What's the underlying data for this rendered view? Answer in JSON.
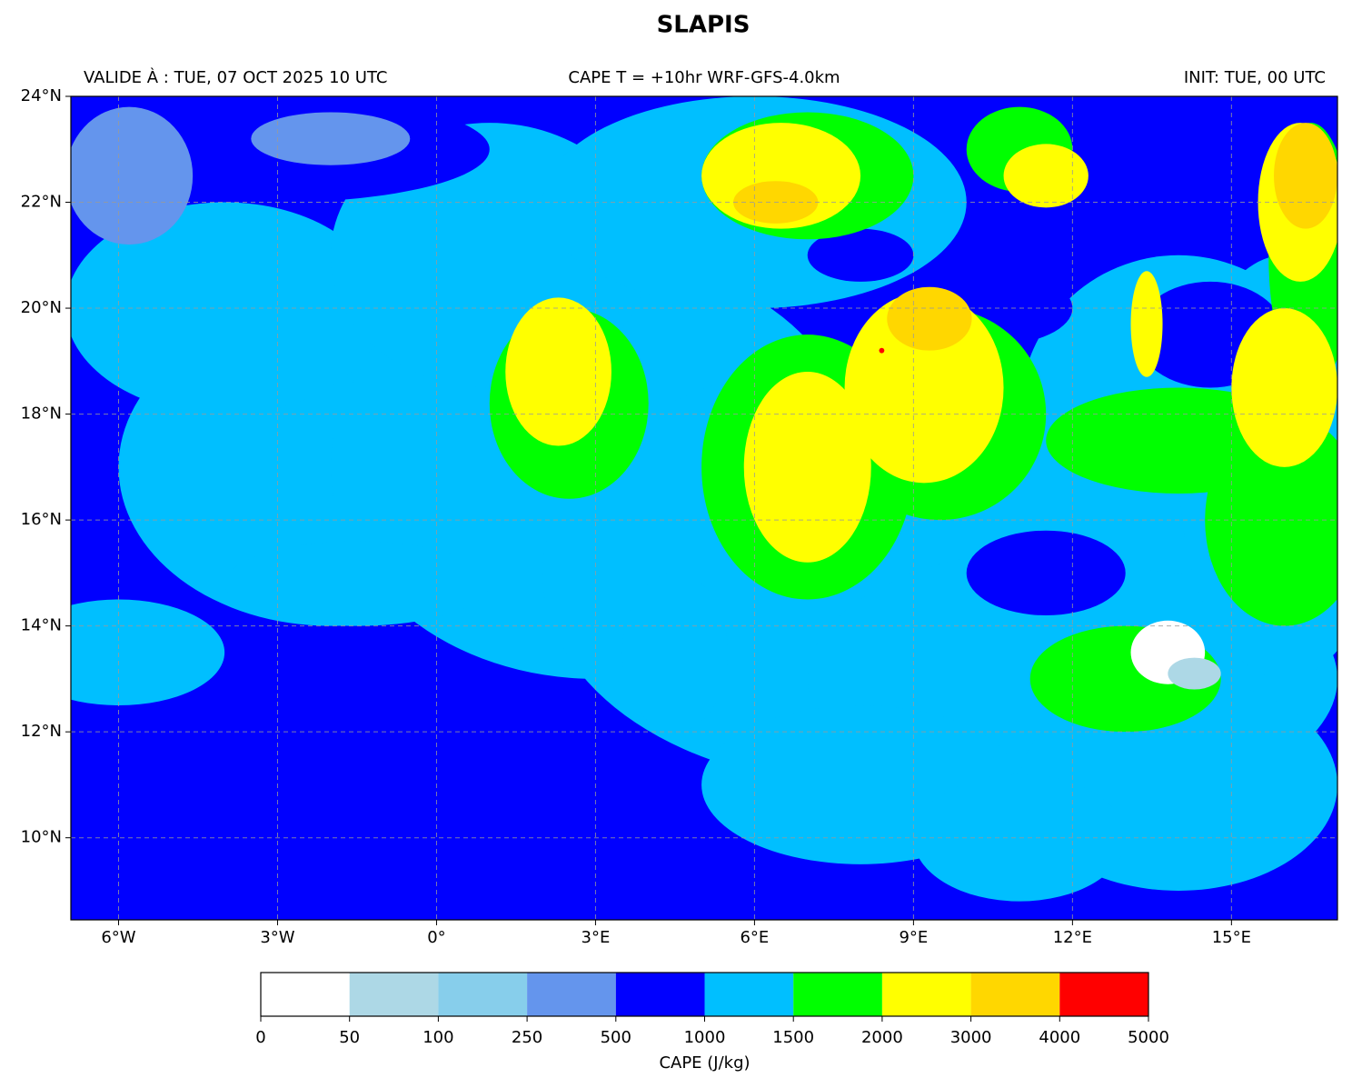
{
  "title": "SLAPIS",
  "header": {
    "left": "VALIDE À : TUE, 07 OCT 2025 10 UTC",
    "center": "CAPE T = +10hr WRF-GFS-4.0km",
    "right": "INIT: TUE, 00 UTC"
  },
  "map": {
    "lon_range": [
      -6.9,
      17
    ],
    "lat_range": [
      8.45,
      24
    ],
    "lon_ticks": [
      {
        "value": -6,
        "label": "6°W"
      },
      {
        "value": -3,
        "label": "3°W"
      },
      {
        "value": 0,
        "label": "0°"
      },
      {
        "value": 3,
        "label": "3°E"
      },
      {
        "value": 6,
        "label": "6°E"
      },
      {
        "value": 9,
        "label": "9°E"
      },
      {
        "value": 12,
        "label": "12°E"
      },
      {
        "value": 15,
        "label": "15°E"
      }
    ],
    "lat_ticks": [
      {
        "value": 10,
        "label": "10°N"
      },
      {
        "value": 12,
        "label": "12°N"
      },
      {
        "value": 14,
        "label": "14°N"
      },
      {
        "value": 16,
        "label": "16°N"
      },
      {
        "value": 18,
        "label": "18°N"
      },
      {
        "value": 20,
        "label": "20°N"
      },
      {
        "value": 22,
        "label": "22°N"
      },
      {
        "value": 24,
        "label": "24°N"
      }
    ],
    "grid": true
  },
  "colorbar": {
    "label": "CAPE (J/kg)",
    "levels": [
      0,
      50,
      100,
      250,
      500,
      1000,
      1500,
      2000,
      3000,
      4000,
      5000
    ],
    "colors": [
      "#ffffff",
      "#add8e6",
      "#87ceeb",
      "#6495ed",
      "#0000ff",
      "#00bfff",
      "#00ff00",
      "#ffff00",
      "#ffd700",
      "#ff0000"
    ]
  }
}
